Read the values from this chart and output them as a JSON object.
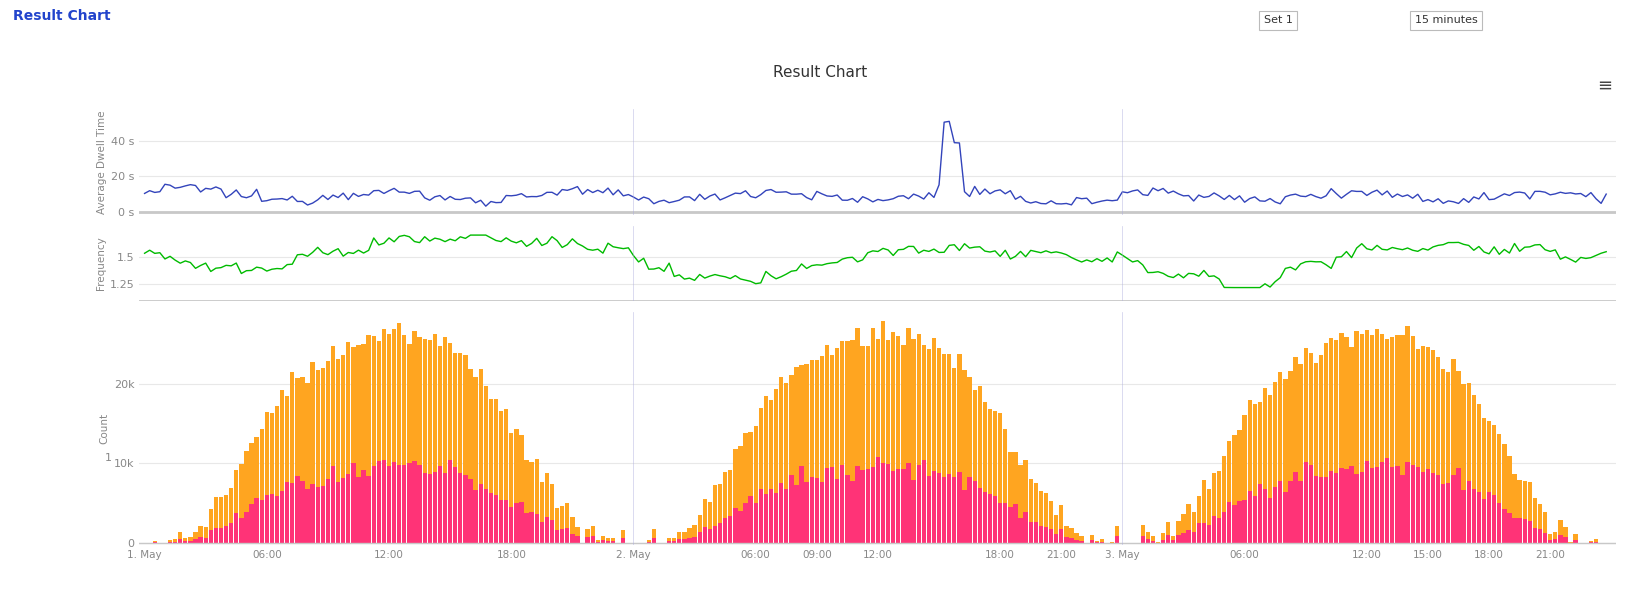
{
  "title": "Result Chart",
  "header_title": "Result Chart",
  "background_color": "#ffffff",
  "plot_bg_color": "#ffffff",
  "x_tick_labels": [
    "1. May",
    "06:00",
    "12:00",
    "18:00",
    "2. May",
    "06:00",
    "09:00",
    "12:00",
    "18:00",
    "21:00",
    "3. May",
    "06:00",
    "12:00",
    "15:00",
    "18:00",
    "21:00"
  ],
  "chart1": {
    "ylabel": "Average Dwell Time",
    "yticks": [
      0,
      20,
      40
    ],
    "ytick_labels": [
      "0 s",
      "20 s",
      "40 s"
    ],
    "ylim": [
      -2,
      58
    ],
    "color": "#3344bb",
    "line_width": 1.0
  },
  "chart2": {
    "ylabel": "Frequency",
    "yticks": [
      1.25,
      1.5
    ],
    "ytick_labels": [
      "1.25",
      "1.5"
    ],
    "ylim": [
      1.1,
      1.78
    ],
    "color": "#00bb00",
    "line_width": 1.0
  },
  "chart3": {
    "ylabel": "Count",
    "yticks": [
      0,
      10000,
      20000
    ],
    "ytick_labels": [
      "0",
      "10k",
      "20k"
    ],
    "ylim": [
      -300,
      29000
    ],
    "color_orange": "#FFA520",
    "color_pink": "#FF3377"
  },
  "separator_color": "#c8c8c8",
  "grid_color": "#e8e8e8",
  "axis_label_color": "#888888",
  "tick_label_color": "#888888"
}
